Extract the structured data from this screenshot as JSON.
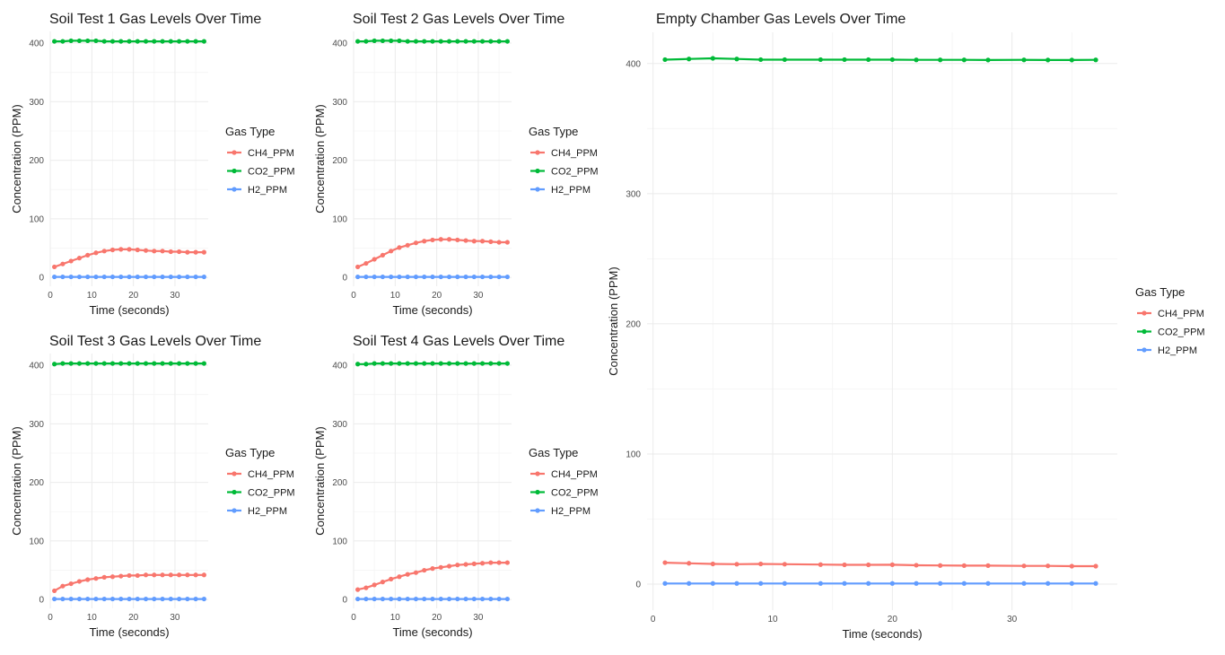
{
  "colors": {
    "CH4_PPM": "#F8766D",
    "CO2_PPM": "#00BA38",
    "H2_PPM": "#619CFF"
  },
  "chart_data": [
    {
      "id": "soil1",
      "type": "line",
      "title": "Soil Test 1 Gas Levels Over Time",
      "xlabel": "Time (seconds)",
      "ylabel": "Concentration (PPM)",
      "xlim": [
        0,
        38
      ],
      "ylim": [
        -15,
        420
      ],
      "xticks": [
        0,
        10,
        20,
        30
      ],
      "yticks": [
        0,
        100,
        200,
        300,
        400
      ],
      "grid": true,
      "legend": {
        "title": "Gas Type",
        "position": "right",
        "labels": [
          "CH4_PPM",
          "CO2_PPM",
          "H2_PPM"
        ]
      },
      "x": [
        1,
        3,
        5,
        7,
        9,
        11,
        13,
        15,
        17,
        19,
        21,
        23,
        25,
        27,
        29,
        31,
        33,
        35,
        37
      ],
      "series": [
        {
          "name": "CH4_PPM",
          "values": [
            18,
            23,
            28,
            33,
            38,
            42,
            45,
            47,
            48,
            48,
            47,
            46,
            45,
            45,
            44,
            44,
            43,
            43,
            43
          ]
        },
        {
          "name": "CO2_PPM",
          "values": [
            403,
            403,
            404,
            404,
            404,
            404,
            403,
            403,
            403,
            403,
            403,
            403,
            403,
            403,
            403,
            403,
            403,
            403,
            403
          ]
        },
        {
          "name": "H2_PPM",
          "values": [
            1,
            1,
            1,
            1,
            1,
            1,
            1,
            1,
            1,
            1,
            1,
            1,
            1,
            1,
            1,
            1,
            1,
            1,
            1
          ]
        }
      ]
    },
    {
      "id": "soil2",
      "type": "line",
      "title": "Soil Test 2 Gas Levels Over Time",
      "xlabel": "Time (seconds)",
      "ylabel": "Concentration (PPM)",
      "xlim": [
        0,
        38
      ],
      "ylim": [
        -15,
        420
      ],
      "xticks": [
        0,
        10,
        20,
        30
      ],
      "yticks": [
        0,
        100,
        200,
        300,
        400
      ],
      "grid": true,
      "legend": {
        "title": "Gas Type",
        "position": "right",
        "labels": [
          "CH4_PPM",
          "CO2_PPM",
          "H2_PPM"
        ]
      },
      "x": [
        1,
        3,
        5,
        7,
        9,
        11,
        13,
        15,
        17,
        19,
        21,
        23,
        25,
        27,
        29,
        31,
        33,
        35,
        37
      ],
      "series": [
        {
          "name": "CH4_PPM",
          "values": [
            18,
            24,
            31,
            38,
            45,
            51,
            55,
            59,
            62,
            64,
            65,
            65,
            64,
            63,
            62,
            62,
            61,
            60,
            60
          ]
        },
        {
          "name": "CO2_PPM",
          "values": [
            403,
            403,
            404,
            404,
            404,
            404,
            403,
            403,
            403,
            403,
            403,
            403,
            403,
            403,
            403,
            403,
            403,
            403,
            403
          ]
        },
        {
          "name": "H2_PPM",
          "values": [
            1,
            1,
            1,
            1,
            1,
            1,
            1,
            1,
            1,
            1,
            1,
            1,
            1,
            1,
            1,
            1,
            1,
            1,
            1
          ]
        }
      ]
    },
    {
      "id": "soil3",
      "type": "line",
      "title": "Soil Test 3 Gas Levels Over Time",
      "xlabel": "Time (seconds)",
      "ylabel": "Concentration (PPM)",
      "xlim": [
        0,
        38
      ],
      "ylim": [
        -15,
        420
      ],
      "xticks": [
        0,
        10,
        20,
        30
      ],
      "yticks": [
        0,
        100,
        200,
        300,
        400
      ],
      "grid": true,
      "legend": {
        "title": "Gas Type",
        "position": "right",
        "labels": [
          "CH4_PPM",
          "CO2_PPM",
          "H2_PPM"
        ]
      },
      "x": [
        1,
        3,
        5,
        7,
        9,
        11,
        13,
        15,
        17,
        19,
        21,
        23,
        25,
        27,
        29,
        31,
        33,
        35,
        37
      ],
      "series": [
        {
          "name": "CH4_PPM",
          "values": [
            15,
            23,
            27,
            31,
            34,
            36,
            38,
            39,
            40,
            41,
            41,
            42,
            42,
            42,
            42,
            42,
            42,
            42,
            42
          ]
        },
        {
          "name": "CO2_PPM",
          "values": [
            402,
            403,
            403,
            403,
            403,
            403,
            403,
            403,
            403,
            403,
            403,
            403,
            403,
            403,
            403,
            403,
            403,
            403,
            403
          ]
        },
        {
          "name": "H2_PPM",
          "values": [
            1,
            1,
            1,
            1,
            1,
            1,
            1,
            1,
            1,
            1,
            1,
            1,
            1,
            1,
            1,
            1,
            1,
            1,
            1
          ]
        }
      ]
    },
    {
      "id": "soil4",
      "type": "line",
      "title": "Soil Test 4 Gas Levels Over Time",
      "xlabel": "Time (seconds)",
      "ylabel": "Concentration (PPM)",
      "xlim": [
        0,
        38
      ],
      "ylim": [
        -15,
        420
      ],
      "xticks": [
        0,
        10,
        20,
        30
      ],
      "yticks": [
        0,
        100,
        200,
        300,
        400
      ],
      "grid": true,
      "legend": {
        "title": "Gas Type",
        "position": "right",
        "labels": [
          "CH4_PPM",
          "CO2_PPM",
          "H2_PPM"
        ]
      },
      "x": [
        1,
        3,
        5,
        7,
        9,
        11,
        13,
        15,
        17,
        19,
        21,
        23,
        25,
        27,
        29,
        31,
        33,
        35,
        37
      ],
      "series": [
        {
          "name": "CH4_PPM",
          "values": [
            17,
            20,
            25,
            30,
            35,
            39,
            43,
            46,
            50,
            53,
            55,
            57,
            59,
            60,
            61,
            62,
            63,
            63,
            63
          ]
        },
        {
          "name": "CO2_PPM",
          "values": [
            402,
            402,
            403,
            403,
            403,
            403,
            403,
            403,
            403,
            403,
            403,
            403,
            403,
            403,
            403,
            403,
            403,
            403,
            403
          ]
        },
        {
          "name": "H2_PPM",
          "values": [
            1,
            1,
            1,
            1,
            1,
            1,
            1,
            1,
            1,
            1,
            1,
            1,
            1,
            1,
            1,
            1,
            1,
            1,
            1
          ]
        }
      ]
    },
    {
      "id": "empty",
      "type": "line",
      "title": "Empty Chamber Gas Levels Over Time",
      "xlabel": "Time (seconds)",
      "ylabel": "Concentration (PPM)",
      "xlim": [
        -0.5,
        38.8
      ],
      "ylim": [
        -20,
        424
      ],
      "xticks": [
        0,
        10,
        20,
        30
      ],
      "yticks": [
        0,
        100,
        200,
        300,
        400
      ],
      "grid": true,
      "legend": {
        "title": "Gas Type",
        "position": "right",
        "labels": [
          "CH4_PPM",
          "CO2_PPM",
          "H2_PPM"
        ]
      },
      "x": [
        1,
        3,
        5,
        7,
        9,
        11,
        14,
        16,
        18,
        20,
        22,
        24,
        26,
        28,
        31,
        33,
        35,
        37
      ],
      "series": [
        {
          "name": "CH4_PPM",
          "values": [
            16.5,
            16,
            15.5,
            15.3,
            15.5,
            15.3,
            15,
            14.8,
            14.8,
            14.9,
            14.5,
            14.3,
            14.2,
            14.2,
            14,
            14,
            13.8,
            13.8
          ]
        },
        {
          "name": "CO2_PPM",
          "values": [
            403,
            403.5,
            404,
            403.5,
            403,
            403,
            403,
            403,
            403,
            403,
            402.8,
            402.8,
            402.8,
            402.7,
            402.8,
            402.7,
            402.7,
            402.8
          ]
        },
        {
          "name": "H2_PPM",
          "values": [
            0.5,
            0.5,
            0.5,
            0.5,
            0.5,
            0.5,
            0.5,
            0.5,
            0.5,
            0.5,
            0.5,
            0.5,
            0.5,
            0.5,
            0.5,
            0.5,
            0.5,
            0.5
          ]
        }
      ]
    }
  ]
}
